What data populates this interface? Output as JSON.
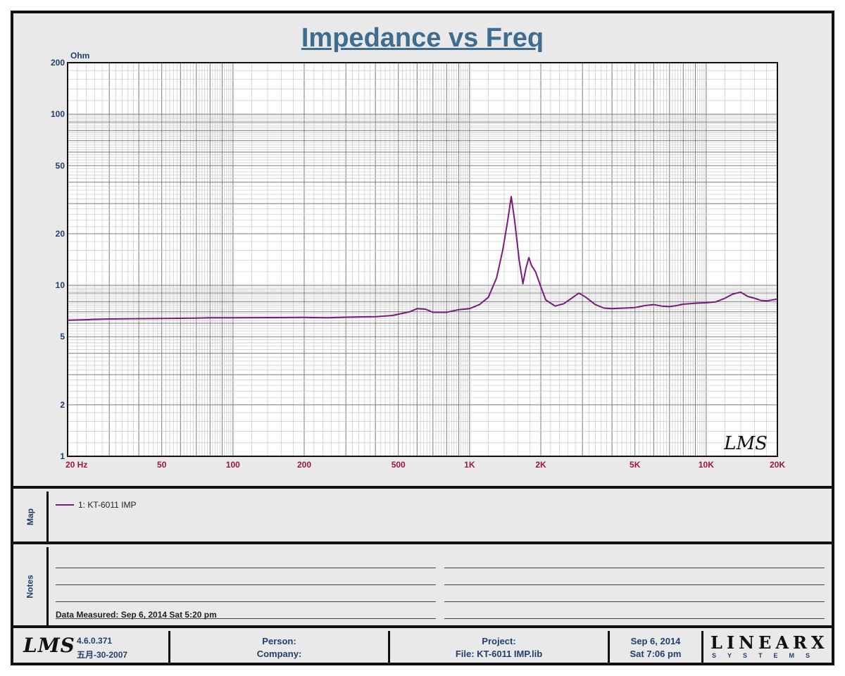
{
  "chart_data": {
    "type": "line",
    "title": "Impedance vs Freq",
    "ylabel": "Ohm",
    "xscale": "log",
    "yscale": "log",
    "xlim": [
      20,
      20000
    ],
    "ylim": [
      1,
      200
    ],
    "grid": true,
    "x_ticks": [
      {
        "value": 20,
        "label": "20  Hz"
      },
      {
        "value": 50,
        "label": "50"
      },
      {
        "value": 100,
        "label": "100"
      },
      {
        "value": 200,
        "label": "200"
      },
      {
        "value": 500,
        "label": "500"
      },
      {
        "value": 1000,
        "label": "1K"
      },
      {
        "value": 2000,
        "label": "2K"
      },
      {
        "value": 5000,
        "label": "5K"
      },
      {
        "value": 10000,
        "label": "10K"
      },
      {
        "value": 20000,
        "label": "20K"
      }
    ],
    "y_ticks": [
      {
        "value": 200,
        "label": "200"
      },
      {
        "value": 100,
        "label": "100"
      },
      {
        "value": 50,
        "label": "50"
      },
      {
        "value": 20,
        "label": "20"
      },
      {
        "value": 10,
        "label": "10"
      },
      {
        "value": 5,
        "label": "5"
      },
      {
        "value": 2,
        "label": "2"
      },
      {
        "value": 1,
        "label": "1"
      }
    ],
    "series": [
      {
        "name": "1: KT-6011 IMP",
        "color": "#7a1a7a",
        "points": [
          [
            20,
            6.25
          ],
          [
            25,
            6.3
          ],
          [
            30,
            6.35
          ],
          [
            40,
            6.38
          ],
          [
            50,
            6.4
          ],
          [
            70,
            6.42
          ],
          [
            80,
            6.45
          ],
          [
            100,
            6.45
          ],
          [
            150,
            6.47
          ],
          [
            200,
            6.48
          ],
          [
            250,
            6.45
          ],
          [
            300,
            6.5
          ],
          [
            400,
            6.55
          ],
          [
            470,
            6.65
          ],
          [
            520,
            6.85
          ],
          [
            560,
            7.0
          ],
          [
            600,
            7.3
          ],
          [
            650,
            7.25
          ],
          [
            700,
            6.95
          ],
          [
            800,
            6.95
          ],
          [
            900,
            7.2
          ],
          [
            1000,
            7.3
          ],
          [
            1100,
            7.7
          ],
          [
            1200,
            8.5
          ],
          [
            1300,
            11.0
          ],
          [
            1380,
            16.0
          ],
          [
            1450,
            24.0
          ],
          [
            1500,
            33.0
          ],
          [
            1550,
            24.0
          ],
          [
            1620,
            14.0
          ],
          [
            1680,
            10.2
          ],
          [
            1730,
            12.5
          ],
          [
            1780,
            14.5
          ],
          [
            1830,
            13.0
          ],
          [
            1900,
            12.0
          ],
          [
            2000,
            9.8
          ],
          [
            2100,
            8.2
          ],
          [
            2300,
            7.55
          ],
          [
            2500,
            7.8
          ],
          [
            2700,
            8.4
          ],
          [
            2900,
            9.0
          ],
          [
            3100,
            8.5
          ],
          [
            3400,
            7.7
          ],
          [
            3700,
            7.35
          ],
          [
            4000,
            7.3
          ],
          [
            4500,
            7.35
          ],
          [
            5000,
            7.4
          ],
          [
            5500,
            7.6
          ],
          [
            6000,
            7.7
          ],
          [
            6500,
            7.55
          ],
          [
            7000,
            7.5
          ],
          [
            7500,
            7.6
          ],
          [
            8000,
            7.75
          ],
          [
            9000,
            7.85
          ],
          [
            10000,
            7.9
          ],
          [
            11000,
            8.0
          ],
          [
            12000,
            8.4
          ],
          [
            13000,
            8.9
          ],
          [
            14000,
            9.1
          ],
          [
            15000,
            8.6
          ],
          [
            16000,
            8.4
          ],
          [
            17000,
            8.15
          ],
          [
            18000,
            8.1
          ],
          [
            19000,
            8.2
          ],
          [
            20000,
            8.3
          ]
        ]
      }
    ]
  },
  "map": {
    "label": "Map",
    "legend_text": "1: KT-6011 IMP"
  },
  "notes": {
    "label": "Notes",
    "data_measured": "Data Measured: Sep  6, 2014  Sat  5:20 pm"
  },
  "footer": {
    "lms_logo": "LMS",
    "version": "4.6.0.371",
    "build_date": "五月-30-2007",
    "person_label": "Person:",
    "company_label": "Company:",
    "project_label": "Project:",
    "file_label": "File: KT-6011 IMP.lib",
    "date": "Sep  6, 2014",
    "time": "Sat  7:06 pm",
    "brand_word": "LINEARX",
    "brand_sub": "SYSTEMS"
  },
  "watermark": "LMS"
}
